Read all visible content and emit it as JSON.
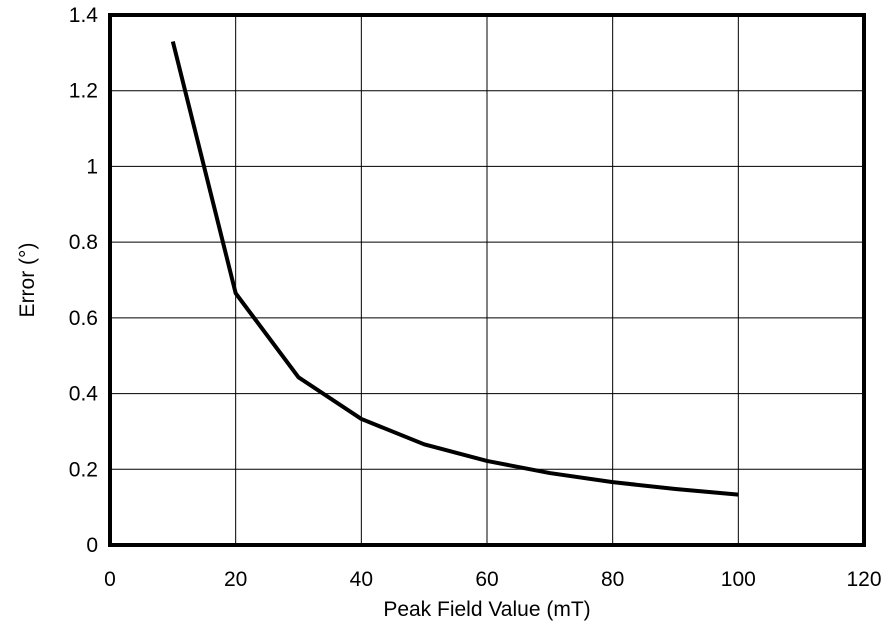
{
  "chart_data": {
    "type": "line",
    "title": "",
    "xlabel": "Peak Field Value (mT)",
    "ylabel": "Error (°)",
    "xlim": [
      0,
      120
    ],
    "ylim": [
      0,
      1.4
    ],
    "x_ticks": [
      "0",
      "20",
      "40",
      "60",
      "80",
      "100",
      "120"
    ],
    "y_ticks": [
      "0",
      "0.2",
      "0.4",
      "0.6",
      "0.8",
      "1",
      "1.2",
      "1.4"
    ],
    "grid": true,
    "legend": "none",
    "series": [
      {
        "x": [
          10,
          20,
          30,
          40,
          50,
          60,
          70,
          80,
          90,
          100
        ],
        "values": [
          1.33,
          0.665,
          0.443,
          0.333,
          0.266,
          0.222,
          0.19,
          0.166,
          0.148,
          0.133
        ]
      }
    ]
  },
  "colors": {
    "line": "#000000",
    "grid": "#000000",
    "frame": "#000000"
  }
}
